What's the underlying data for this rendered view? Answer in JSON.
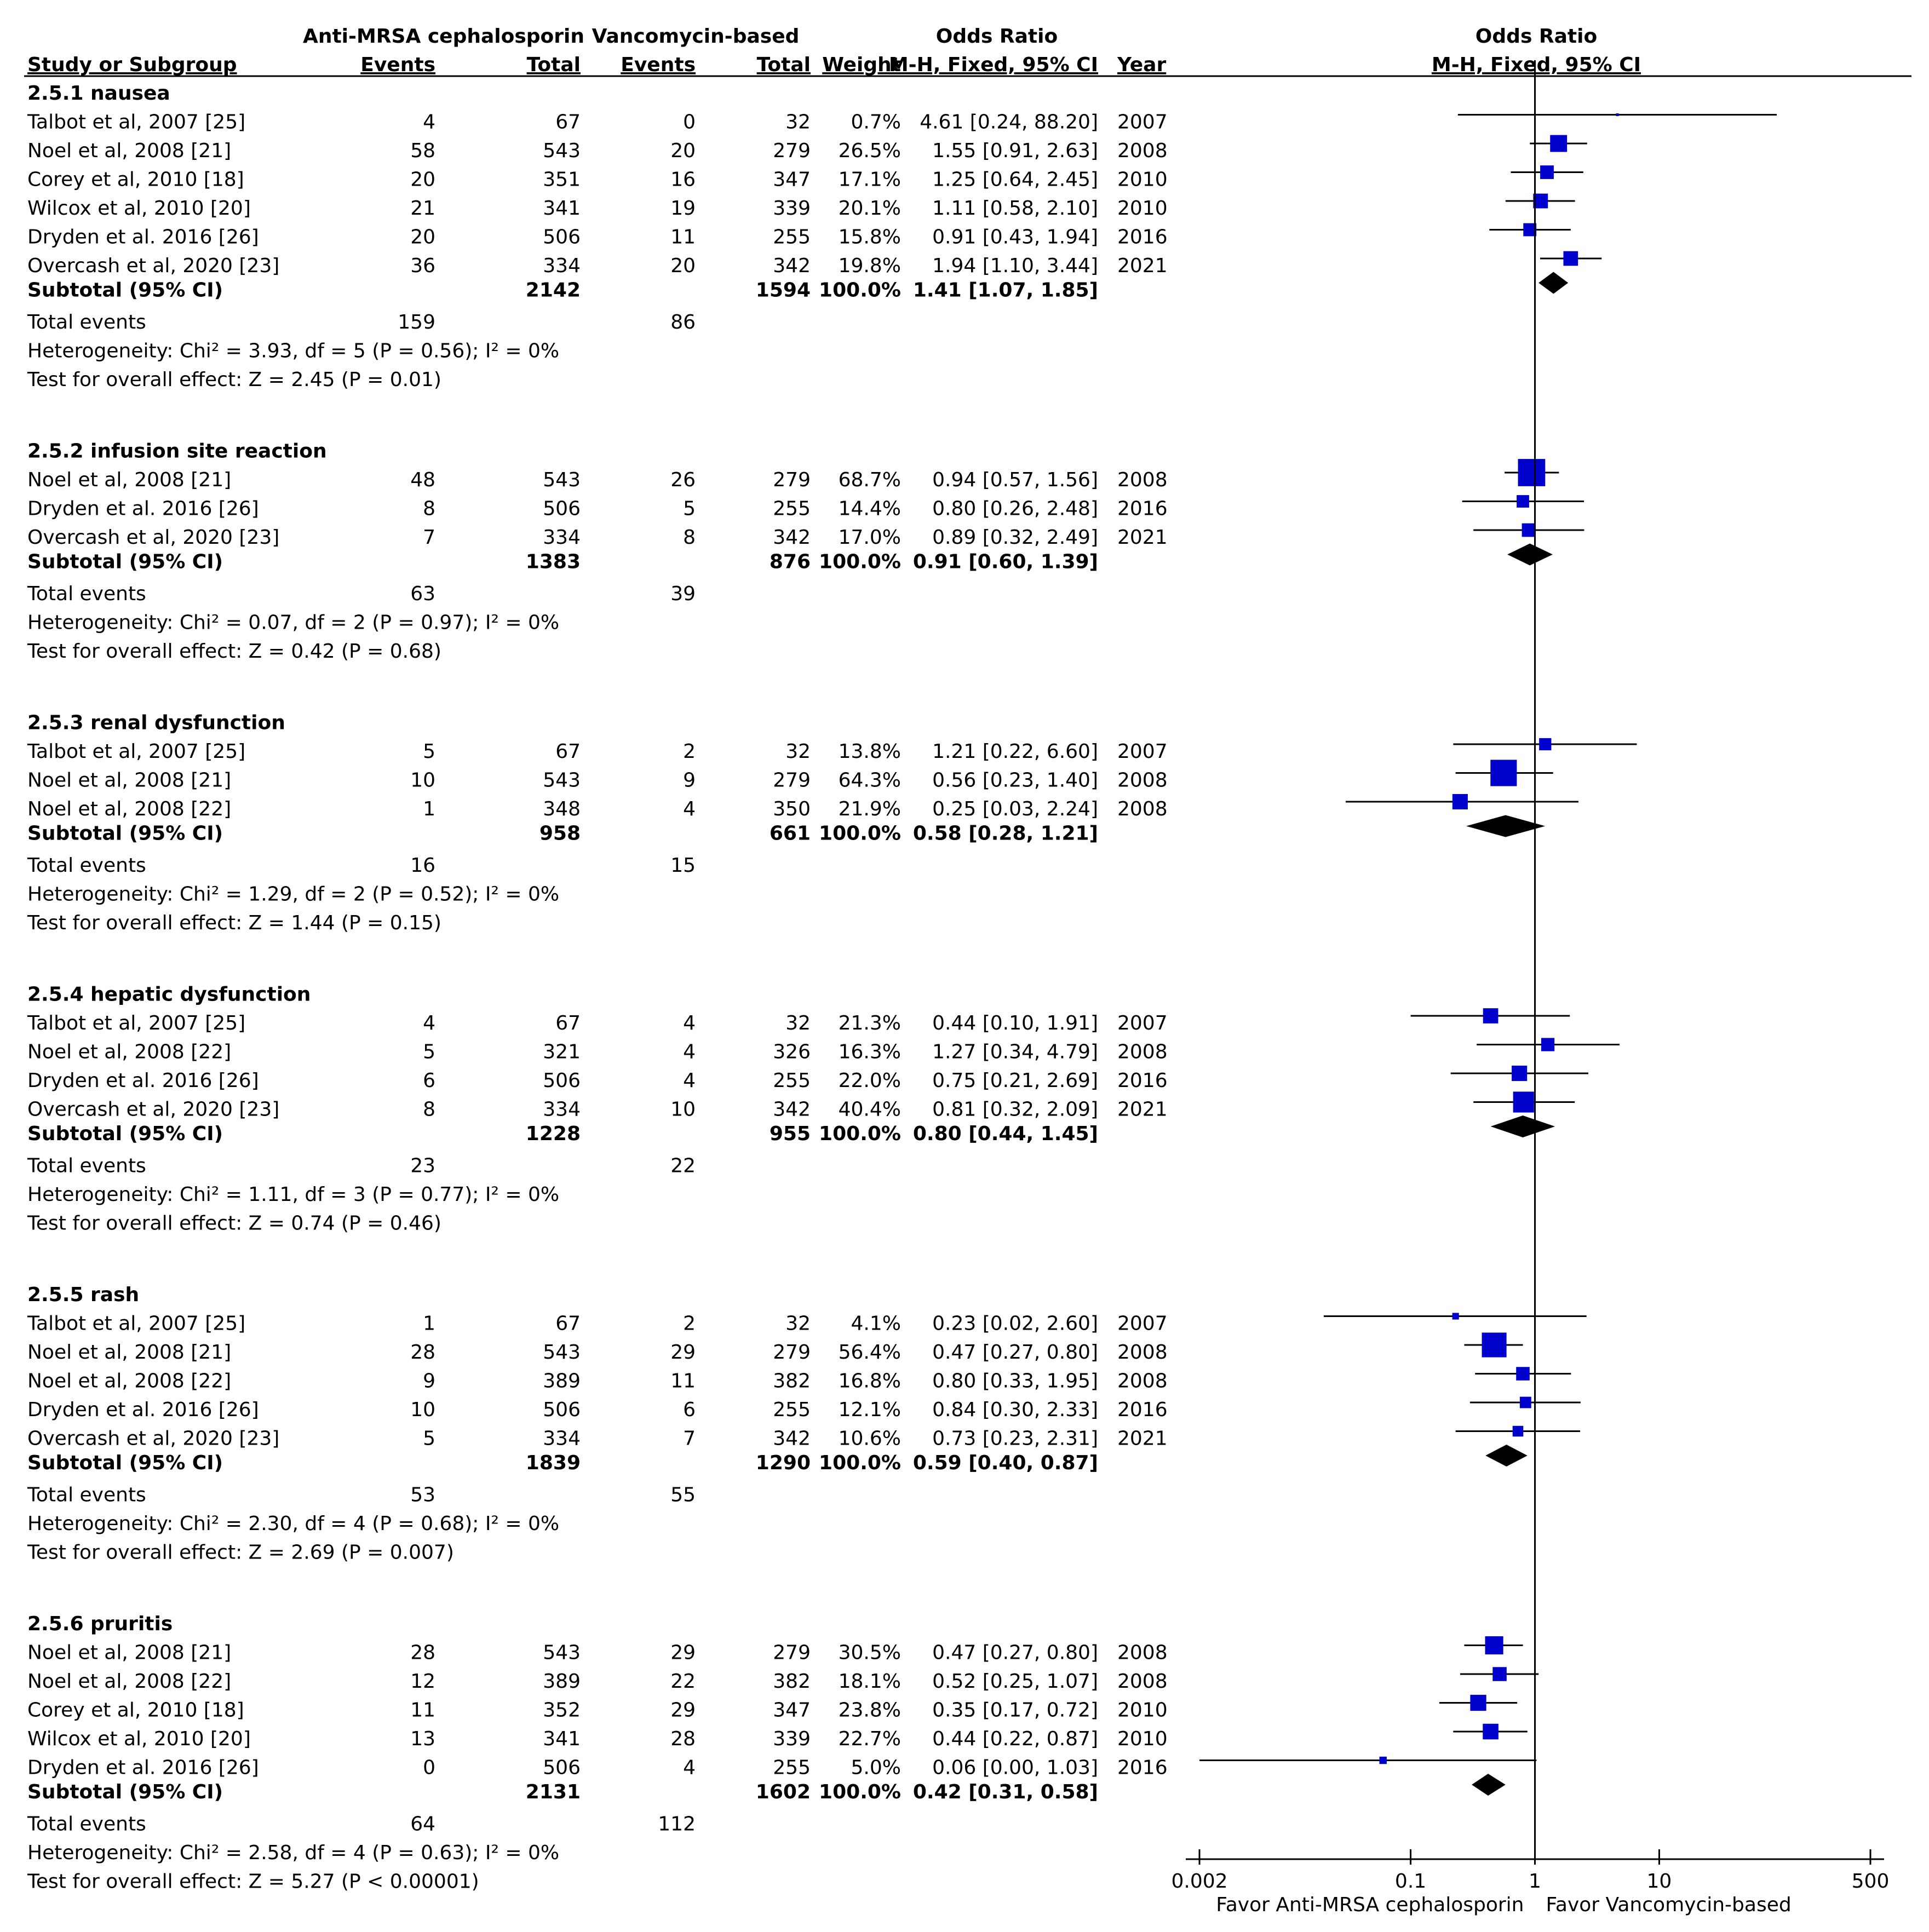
{
  "header": {
    "group1": "Anti-MRSA cephalosporin",
    "group2": "Vancomycin-based",
    "or_table": "Odds Ratio",
    "or_plot": "Odds Ratio",
    "cols": {
      "study": "Study or Subgroup",
      "events1": "Events",
      "total1": "Total",
      "events2": "Events",
      "total2": "Total",
      "weight": "Weight",
      "ci": "M-H, Fixed, 95% CI",
      "year": "Year",
      "plot_ci": "M-H, Fixed, 95% CI"
    }
  },
  "chart_data": {
    "type": "forest",
    "scale": "log",
    "axis": {
      "ticks": [
        0.002,
        0.1,
        1,
        10,
        500
      ],
      "tick_labels": [
        "0.002",
        "0.1",
        "1",
        "10",
        "500"
      ],
      "xlim": [
        0.002,
        500
      ],
      "favor_left": "Favor Anti-MRSA cephalosporin",
      "favor_right": "Favor Vancomycin-based"
    },
    "groups": [
      {
        "title": "2.5.1 nausea",
        "studies": [
          {
            "study": "Talbot et al, 2007 [25]",
            "e1": "4",
            "t1": "67",
            "e2": "0",
            "t2": "32",
            "w": "0.7%",
            "ci": "4.61 [0.24, 88.20]",
            "year": "2007",
            "or": 4.61,
            "lo": 0.24,
            "hi": 88.2,
            "wt": 0.7
          },
          {
            "study": "Noel et al, 2008 [21]",
            "e1": "58",
            "t1": "543",
            "e2": "20",
            "t2": "279",
            "w": "26.5%",
            "ci": "1.55 [0.91, 2.63]",
            "year": "2008",
            "or": 1.55,
            "lo": 0.91,
            "hi": 2.63,
            "wt": 26.5
          },
          {
            "study": "Corey et al, 2010 [18]",
            "e1": "20",
            "t1": "351",
            "e2": "16",
            "t2": "347",
            "w": "17.1%",
            "ci": "1.25 [0.64, 2.45]",
            "year": "2010",
            "or": 1.25,
            "lo": 0.64,
            "hi": 2.45,
            "wt": 17.1
          },
          {
            "study": "Wilcox et al, 2010 [20]",
            "e1": "21",
            "t1": "341",
            "e2": "19",
            "t2": "339",
            "w": "20.1%",
            "ci": "1.11 [0.58, 2.10]",
            "year": "2010",
            "or": 1.11,
            "lo": 0.58,
            "hi": 2.1,
            "wt": 20.1
          },
          {
            "study": "Dryden et al. 2016 [26]",
            "e1": "20",
            "t1": "506",
            "e2": "11",
            "t2": "255",
            "w": "15.8%",
            "ci": "0.91 [0.43, 1.94]",
            "year": "2016",
            "or": 0.91,
            "lo": 0.43,
            "hi": 1.94,
            "wt": 15.8
          },
          {
            "study": "Overcash et al, 2020 [23]",
            "e1": "36",
            "t1": "334",
            "e2": "20",
            "t2": "342",
            "w": "19.8%",
            "ci": "1.94 [1.10, 3.44]",
            "year": "2021",
            "or": 1.94,
            "lo": 1.1,
            "hi": 3.44,
            "wt": 19.8
          }
        ],
        "subtotal": {
          "label": "Subtotal (95% CI)",
          "t1": "2142",
          "t2": "1594",
          "w": "100.0%",
          "ci": "1.41 [1.07, 1.85]",
          "or": 1.41,
          "lo": 1.07,
          "hi": 1.85
        },
        "events": {
          "label": "Total events",
          "e1": "159",
          "e2": "86"
        },
        "het": "Heterogeneity: Chi² = 3.93, df = 5 (P = 0.56); I² = 0%",
        "test": "Test for overall effect: Z = 2.45 (P = 0.01)"
      },
      {
        "title": "2.5.2 infusion site reaction",
        "studies": [
          {
            "study": "Noel et al, 2008 [21]",
            "e1": "48",
            "t1": "543",
            "e2": "26",
            "t2": "279",
            "w": "68.7%",
            "ci": "0.94 [0.57, 1.56]",
            "year": "2008",
            "or": 0.94,
            "lo": 0.57,
            "hi": 1.56,
            "wt": 68.7
          },
          {
            "study": "Dryden et al. 2016 [26]",
            "e1": "8",
            "t1": "506",
            "e2": "5",
            "t2": "255",
            "w": "14.4%",
            "ci": "0.80 [0.26, 2.48]",
            "year": "2016",
            "or": 0.8,
            "lo": 0.26,
            "hi": 2.48,
            "wt": 14.4
          },
          {
            "study": "Overcash et al, 2020 [23]",
            "e1": "7",
            "t1": "334",
            "e2": "8",
            "t2": "342",
            "w": "17.0%",
            "ci": "0.89 [0.32, 2.49]",
            "year": "2021",
            "or": 0.89,
            "lo": 0.32,
            "hi": 2.49,
            "wt": 17.0
          }
        ],
        "subtotal": {
          "label": "Subtotal (95% CI)",
          "t1": "1383",
          "t2": "876",
          "w": "100.0%",
          "ci": "0.91 [0.60, 1.39]",
          "or": 0.91,
          "lo": 0.6,
          "hi": 1.39
        },
        "events": {
          "label": "Total events",
          "e1": "63",
          "e2": "39"
        },
        "het": "Heterogeneity: Chi² = 0.07, df = 2 (P = 0.97); I² = 0%",
        "test": "Test for overall effect: Z = 0.42 (P = 0.68)"
      },
      {
        "title": "2.5.3 renal dysfunction",
        "studies": [
          {
            "study": "Talbot et al, 2007 [25]",
            "e1": "5",
            "t1": "67",
            "e2": "2",
            "t2": "32",
            "w": "13.8%",
            "ci": "1.21 [0.22, 6.60]",
            "year": "2007",
            "or": 1.21,
            "lo": 0.22,
            "hi": 6.6,
            "wt": 13.8
          },
          {
            "study": "Noel et al, 2008 [21]",
            "e1": "10",
            "t1": "543",
            "e2": "9",
            "t2": "279",
            "w": "64.3%",
            "ci": "0.56 [0.23, 1.40]",
            "year": "2008",
            "or": 0.56,
            "lo": 0.23,
            "hi": 1.4,
            "wt": 64.3
          },
          {
            "study": "Noel et al, 2008 [22]",
            "e1": "1",
            "t1": "348",
            "e2": "4",
            "t2": "350",
            "w": "21.9%",
            "ci": "0.25 [0.03, 2.24]",
            "year": "2008",
            "or": 0.25,
            "lo": 0.03,
            "hi": 2.24,
            "wt": 21.9
          }
        ],
        "subtotal": {
          "label": "Subtotal (95% CI)",
          "t1": "958",
          "t2": "661",
          "w": "100.0%",
          "ci": "0.58 [0.28, 1.21]",
          "or": 0.58,
          "lo": 0.28,
          "hi": 1.21
        },
        "events": {
          "label": "Total events",
          "e1": "16",
          "e2": "15"
        },
        "het": "Heterogeneity: Chi² = 1.29, df = 2 (P = 0.52); I² = 0%",
        "test": "Test for overall effect: Z = 1.44 (P = 0.15)"
      },
      {
        "title": "2.5.4 hepatic dysfunction",
        "studies": [
          {
            "study": "Talbot et al, 2007 [25]",
            "e1": "4",
            "t1": "67",
            "e2": "4",
            "t2": "32",
            "w": "21.3%",
            "ci": "0.44 [0.10, 1.91]",
            "year": "2007",
            "or": 0.44,
            "lo": 0.1,
            "hi": 1.91,
            "wt": 21.3
          },
          {
            "study": "Noel et al, 2008 [22]",
            "e1": "5",
            "t1": "321",
            "e2": "4",
            "t2": "326",
            "w": "16.3%",
            "ci": "1.27 [0.34, 4.79]",
            "year": "2008",
            "or": 1.27,
            "lo": 0.34,
            "hi": 4.79,
            "wt": 16.3
          },
          {
            "study": "Dryden et al. 2016 [26]",
            "e1": "6",
            "t1": "506",
            "e2": "4",
            "t2": "255",
            "w": "22.0%",
            "ci": "0.75 [0.21, 2.69]",
            "year": "2016",
            "or": 0.75,
            "lo": 0.21,
            "hi": 2.69,
            "wt": 22.0
          },
          {
            "study": "Overcash et al, 2020 [23]",
            "e1": "8",
            "t1": "334",
            "e2": "10",
            "t2": "342",
            "w": "40.4%",
            "ci": "0.81 [0.32, 2.09]",
            "year": "2021",
            "or": 0.81,
            "lo": 0.32,
            "hi": 2.09,
            "wt": 40.4
          }
        ],
        "subtotal": {
          "label": "Subtotal (95% CI)",
          "t1": "1228",
          "t2": "955",
          "w": "100.0%",
          "ci": "0.80 [0.44, 1.45]",
          "or": 0.8,
          "lo": 0.44,
          "hi": 1.45
        },
        "events": {
          "label": "Total events",
          "e1": "23",
          "e2": "22"
        },
        "het": "Heterogeneity: Chi² = 1.11, df = 3 (P = 0.77); I² = 0%",
        "test": "Test for overall effect: Z = 0.74 (P = 0.46)"
      },
      {
        "title": "2.5.5 rash",
        "studies": [
          {
            "study": "Talbot et al, 2007 [25]",
            "e1": "1",
            "t1": "67",
            "e2": "2",
            "t2": "32",
            "w": "4.1%",
            "ci": "0.23 [0.02, 2.60]",
            "year": "2007",
            "or": 0.23,
            "lo": 0.02,
            "hi": 2.6,
            "wt": 4.1
          },
          {
            "study": "Noel et al, 2008 [21]",
            "e1": "28",
            "t1": "543",
            "e2": "29",
            "t2": "279",
            "w": "56.4%",
            "ci": "0.47 [0.27, 0.80]",
            "year": "2008",
            "or": 0.47,
            "lo": 0.27,
            "hi": 0.8,
            "wt": 56.4
          },
          {
            "study": "Noel et al, 2008 [22]",
            "e1": "9",
            "t1": "389",
            "e2": "11",
            "t2": "382",
            "w": "16.8%",
            "ci": "0.80 [0.33, 1.95]",
            "year": "2008",
            "or": 0.8,
            "lo": 0.33,
            "hi": 1.95,
            "wt": 16.8
          },
          {
            "study": "Dryden et al. 2016 [26]",
            "e1": "10",
            "t1": "506",
            "e2": "6",
            "t2": "255",
            "w": "12.1%",
            "ci": "0.84 [0.30, 2.33]",
            "year": "2016",
            "or": 0.84,
            "lo": 0.3,
            "hi": 2.33,
            "wt": 12.1
          },
          {
            "study": "Overcash et al, 2020 [23]",
            "e1": "5",
            "t1": "334",
            "e2": "7",
            "t2": "342",
            "w": "10.6%",
            "ci": "0.73 [0.23, 2.31]",
            "year": "2021",
            "or": 0.73,
            "lo": 0.23,
            "hi": 2.31,
            "wt": 10.6
          }
        ],
        "subtotal": {
          "label": "Subtotal (95% CI)",
          "t1": "1839",
          "t2": "1290",
          "w": "100.0%",
          "ci": "0.59 [0.40, 0.87]",
          "or": 0.59,
          "lo": 0.4,
          "hi": 0.87
        },
        "events": {
          "label": "Total events",
          "e1": "53",
          "e2": "55"
        },
        "het": "Heterogeneity: Chi² = 2.30, df = 4 (P = 0.68); I² = 0%",
        "test": "Test for overall effect: Z = 2.69 (P = 0.007)"
      },
      {
        "title": "2.5.6 pruritis",
        "studies": [
          {
            "study": "Noel et al, 2008 [21]",
            "e1": "28",
            "t1": "543",
            "e2": "29",
            "t2": "279",
            "w": "30.5%",
            "ci": "0.47 [0.27, 0.80]",
            "year": "2008",
            "or": 0.47,
            "lo": 0.27,
            "hi": 0.8,
            "wt": 30.5
          },
          {
            "study": "Noel et al, 2008 [22]",
            "e1": "12",
            "t1": "389",
            "e2": "22",
            "t2": "382",
            "w": "18.1%",
            "ci": "0.52 [0.25, 1.07]",
            "year": "2008",
            "or": 0.52,
            "lo": 0.25,
            "hi": 1.07,
            "wt": 18.1
          },
          {
            "study": "Corey et al, 2010 [18]",
            "e1": "11",
            "t1": "352",
            "e2": "29",
            "t2": "347",
            "w": "23.8%",
            "ci": "0.35 [0.17, 0.72]",
            "year": "2010",
            "or": 0.35,
            "lo": 0.17,
            "hi": 0.72,
            "wt": 23.8
          },
          {
            "study": "Wilcox et al, 2010 [20]",
            "e1": "13",
            "t1": "341",
            "e2": "28",
            "t2": "339",
            "w": "22.7%",
            "ci": "0.44 [0.22, 0.87]",
            "year": "2010",
            "or": 0.44,
            "lo": 0.22,
            "hi": 0.87,
            "wt": 22.7
          },
          {
            "study": "Dryden et al. 2016 [26]",
            "e1": "0",
            "t1": "506",
            "e2": "4",
            "t2": "255",
            "w": "5.0%",
            "ci": "0.06 [0.00, 1.03]",
            "year": "2016",
            "or": 0.06,
            "lo": 0.002,
            "hi": 1.03,
            "wt": 5.0
          }
        ],
        "subtotal": {
          "label": "Subtotal (95% CI)",
          "t1": "2131",
          "t2": "1602",
          "w": "100.0%",
          "ci": "0.42 [0.31, 0.58]",
          "or": 0.42,
          "lo": 0.31,
          "hi": 0.58
        },
        "events": {
          "label": "Total events",
          "e1": "64",
          "e2": "112"
        },
        "het": "Heterogeneity: Chi² = 2.58, df = 4 (P = 0.63); I² = 0%",
        "test": "Test for overall effect: Z = 5.27 (P < 0.00001)"
      }
    ]
  },
  "colors": {
    "marker": "#0000cc",
    "diamond": "#000000",
    "line": "#000000",
    "text": "#000000"
  }
}
